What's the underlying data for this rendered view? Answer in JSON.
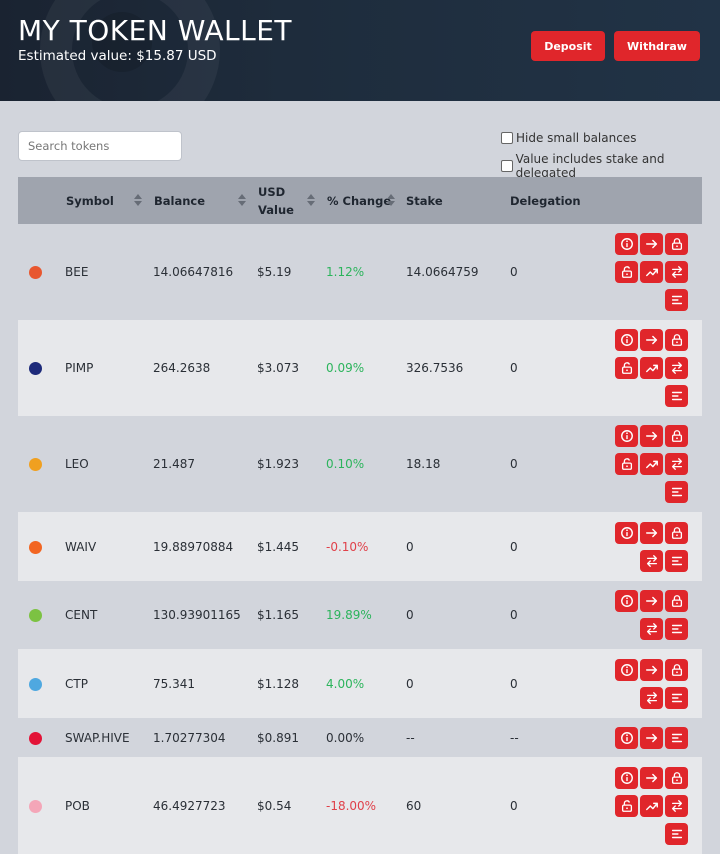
{
  "header": {
    "title": "MY TOKEN WALLET",
    "estimated_value": "Estimated value: $15.87 USD",
    "deposit_label": "Deposit",
    "withdraw_label": "Withdraw"
  },
  "filters": {
    "search_placeholder": "Search tokens",
    "hide_small_label": "Hide small balances",
    "hide_small_checked": false,
    "include_stake_label": "Value includes stake and delegated",
    "include_stake_checked": false
  },
  "columns": {
    "symbol": "Symbol",
    "balance": "Balance",
    "usd_value_line1": "USD",
    "usd_value_line2": "Value",
    "change": "% Change",
    "stake": "Stake",
    "delegation": "Delegation"
  },
  "colors": {
    "accent": "#e0262b",
    "positive": "#2cb45c",
    "negative": "#e0414a",
    "header_bg": "#1e2c3c"
  },
  "rows": [
    {
      "symbol": "BEE",
      "balance": "14.06647816",
      "usd": "$5.19",
      "change": "1.12%",
      "trend": "positive",
      "stake": "14.0664759",
      "delegation": "0",
      "logo_color": "#e8572f",
      "actions": [
        "info-icon",
        "transfer-icon",
        "lock-icon",
        "unlock-icon",
        "chart-icon",
        "swap-icon",
        "menu-icon"
      ]
    },
    {
      "symbol": "PIMP",
      "balance": "264.2638",
      "usd": "$3.073",
      "change": "0.09%",
      "trend": "positive",
      "stake": "326.7536",
      "delegation": "0",
      "logo_color": "#1d2a7a",
      "actions": [
        "info-icon",
        "transfer-icon",
        "lock-icon",
        "unlock-icon",
        "chart-icon",
        "swap-icon",
        "menu-icon"
      ]
    },
    {
      "symbol": "LEO",
      "balance": "21.487",
      "usd": "$1.923",
      "change": "0.10%",
      "trend": "positive",
      "stake": "18.18",
      "delegation": "0",
      "logo_color": "#f0a020",
      "actions": [
        "info-icon",
        "transfer-icon",
        "lock-icon",
        "unlock-icon",
        "chart-icon",
        "swap-icon",
        "menu-icon"
      ]
    },
    {
      "symbol": "WAIV",
      "balance": "19.88970884",
      "usd": "$1.445",
      "change": "-0.10%",
      "trend": "negative",
      "stake": "0",
      "delegation": "0",
      "logo_color": "#f26522",
      "actions": [
        "info-icon",
        "transfer-icon",
        "lock-icon",
        "swap-icon",
        "menu-icon"
      ]
    },
    {
      "symbol": "CENT",
      "balance": "130.93901165",
      "usd": "$1.165",
      "change": "19.89%",
      "trend": "positive",
      "stake": "0",
      "delegation": "0",
      "logo_color": "#7cc242",
      "actions": [
        "info-icon",
        "transfer-icon",
        "lock-icon",
        "swap-icon",
        "menu-icon"
      ]
    },
    {
      "symbol": "CTP",
      "balance": "75.341",
      "usd": "$1.128",
      "change": "4.00%",
      "trend": "positive",
      "stake": "0",
      "delegation": "0",
      "logo_color": "#4fa8e0",
      "actions": [
        "info-icon",
        "transfer-icon",
        "lock-icon",
        "swap-icon",
        "menu-icon"
      ]
    },
    {
      "symbol": "SWAP.HIVE",
      "balance": "1.70277304",
      "usd": "$0.891",
      "change": "0.00%",
      "trend": "neutral",
      "stake": "--",
      "delegation": "--",
      "logo_color": "#e31337",
      "actions": [
        "info-icon",
        "transfer-icon",
        "menu-icon"
      ]
    },
    {
      "symbol": "POB",
      "balance": "46.4927723",
      "usd": "$0.54",
      "change": "-18.00%",
      "trend": "negative",
      "stake": "60",
      "delegation": "0",
      "logo_color": "#f4a6b8",
      "actions": [
        "info-icon",
        "transfer-icon",
        "lock-icon",
        "unlock-icon",
        "chart-icon",
        "swap-icon",
        "menu-icon"
      ]
    }
  ]
}
